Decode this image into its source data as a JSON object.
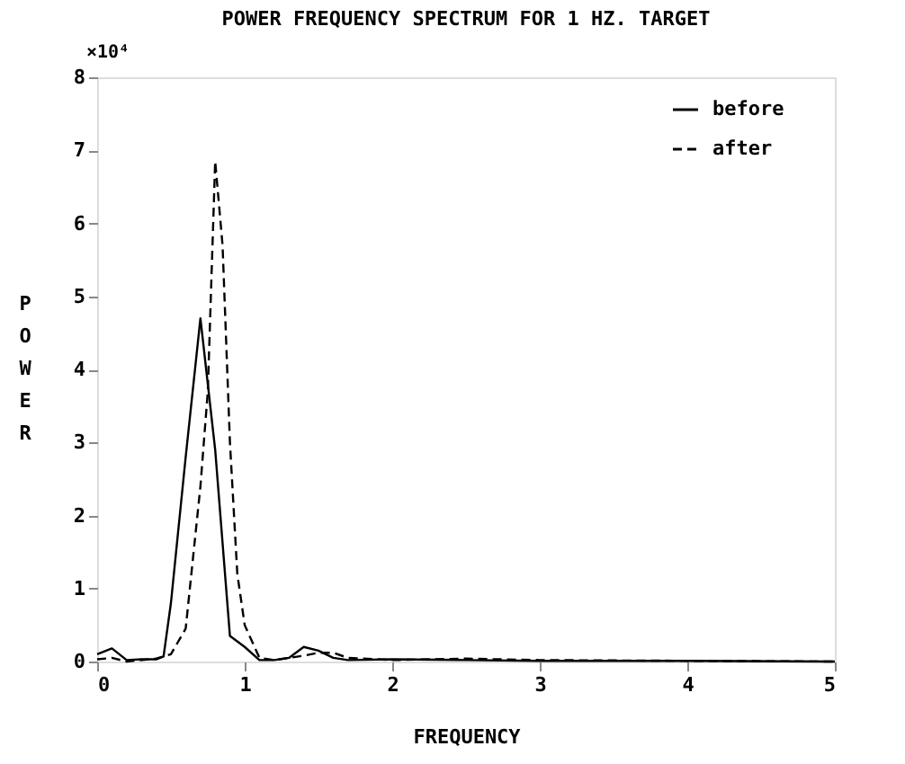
{
  "chart_data": {
    "type": "line",
    "title": "POWER FREQUENCY SPECTRUM FOR 1 HZ. TARGET",
    "xlabel": "FREQUENCY",
    "ylabel": "POWER",
    "annotations": [
      "×10⁴"
    ],
    "xlim": [
      0,
      5
    ],
    "ylim": [
      0,
      8
    ],
    "xticks": [
      0,
      1,
      2,
      3,
      4,
      5
    ],
    "yticks": [
      0,
      1,
      2,
      3,
      4,
      5,
      6,
      7,
      8
    ],
    "grid": false,
    "legend": "top right",
    "marker": "none",
    "series": [
      {
        "name": "before",
        "color": "#000000",
        "line_style": "solid",
        "x": [
          0,
          0.1,
          0.2,
          0.3,
          0.4,
          0.45,
          0.5,
          0.6,
          0.7,
          0.8,
          0.9,
          1.0,
          1.1,
          1.2,
          1.3,
          1.4,
          1.5,
          1.6,
          1.7,
          2.0,
          2.5,
          3.0,
          4.0,
          5.0
        ],
        "values": [
          0.1,
          0.18,
          0.02,
          0.03,
          0.03,
          0.07,
          0.8,
          2.8,
          4.7,
          2.9,
          0.35,
          0.2,
          0.02,
          0.02,
          0.05,
          0.2,
          0.15,
          0.05,
          0.02,
          0.03,
          0.02,
          0.01,
          0.01,
          0
        ]
      },
      {
        "name": "after",
        "color": "#000000",
        "line_style": "dashed",
        "x": [
          0,
          0.1,
          0.2,
          0.4,
          0.5,
          0.6,
          0.7,
          0.75,
          0.8,
          0.85,
          0.9,
          0.95,
          1.0,
          1.1,
          1.2,
          1.4,
          1.5,
          1.6,
          1.7,
          2.0,
          2.5,
          3.0,
          4.0,
          5.0
        ],
        "values": [
          0.03,
          0.05,
          0,
          0.04,
          0.1,
          0.45,
          2.4,
          3.7,
          6.85,
          5.7,
          3.0,
          1.2,
          0.5,
          0.05,
          0.02,
          0.08,
          0.12,
          0.12,
          0.05,
          0.02,
          0.04,
          0.02,
          0.01,
          0
        ]
      }
    ]
  }
}
